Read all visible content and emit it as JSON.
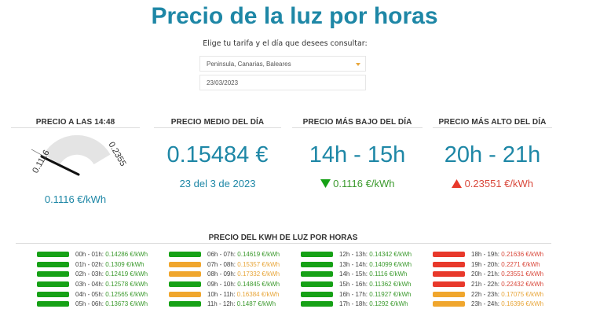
{
  "header": {
    "title": "Precio de la luz por horas",
    "subtitle": "Elige tu tarifa y el día que desees consultar:"
  },
  "form": {
    "tariff_select": {
      "value": "Peninsula, Canarias, Baleares",
      "icon": "chevron-down-icon"
    },
    "date_input": {
      "value": "23/03/2023"
    }
  },
  "colors": {
    "accent": "#1e87a6",
    "green": "#16a116",
    "orange": "#f0a62d",
    "red": "#e8392b",
    "gauge_arc": "#e4e4e4"
  },
  "current_price": {
    "heading": "PRECIO A LAS 14:48",
    "gauge_min_label": "0.1116",
    "gauge_max_label": "0.2355",
    "value": "0.1116 €/kWh"
  },
  "average_price": {
    "heading": "PRECIO MEDIO DEL DÍA",
    "value": "0.15484 €",
    "date": "23 del 3 de 2023"
  },
  "lowest_price": {
    "heading": "PRECIO MÁS BAJO DEL DÍA",
    "range": "14h - 15h",
    "icon": "triangle-down-icon",
    "value": "0.1116 €/kWh"
  },
  "highest_price": {
    "heading": "PRECIO MÁS ALTO DEL DÍA",
    "range": "20h - 21h",
    "icon": "triangle-up-icon",
    "value": "0.23551 €/kWh"
  },
  "hourly": {
    "heading": "PRECIO DEL KWH DE LUZ POR HORAS",
    "columns": [
      [
        {
          "range": "00h - 01h:",
          "price": "0.14286 €/kWh",
          "level": "green"
        },
        {
          "range": "01h - 02h:",
          "price": "0.1309 €/kWh",
          "level": "green"
        },
        {
          "range": "02h - 03h:",
          "price": "0.12419 €/kWh",
          "level": "green"
        },
        {
          "range": "03h - 04h:",
          "price": "0.12578 €/kWh",
          "level": "green"
        },
        {
          "range": "04h - 05h:",
          "price": "0.12565 €/kWh",
          "level": "green"
        },
        {
          "range": "05h - 06h:",
          "price": "0.13673 €/kWh",
          "level": "green"
        }
      ],
      [
        {
          "range": "06h - 07h:",
          "price": "0.14619 €/kWh",
          "level": "green"
        },
        {
          "range": "07h - 08h:",
          "price": "0.15357 €/kWh",
          "level": "orange"
        },
        {
          "range": "08h - 09h:",
          "price": "0.17332 €/kWh",
          "level": "orange"
        },
        {
          "range": "09h - 10h:",
          "price": "0.14845 €/kWh",
          "level": "green"
        },
        {
          "range": "10h - 11h:",
          "price": "0.16384 €/kWh",
          "level": "orange"
        },
        {
          "range": "11h - 12h:",
          "price": "0.1487 €/kWh",
          "level": "green"
        }
      ],
      [
        {
          "range": "12h - 13h:",
          "price": "0.14342 €/kWh",
          "level": "green"
        },
        {
          "range": "13h - 14h:",
          "price": "0.14099 €/kWh",
          "level": "green"
        },
        {
          "range": "14h - 15h:",
          "price": "0.1116 €/kWh",
          "level": "green"
        },
        {
          "range": "15h - 16h:",
          "price": "0.11362 €/kWh",
          "level": "green"
        },
        {
          "range": "16h - 17h:",
          "price": "0.11927 €/kWh",
          "level": "green"
        },
        {
          "range": "17h - 18h:",
          "price": "0.1292 €/kWh",
          "level": "green"
        }
      ],
      [
        {
          "range": "18h - 19h:",
          "price": "0.21636 €/kWh",
          "level": "red"
        },
        {
          "range": "19h - 20h:",
          "price": "0.2271 €/kWh",
          "level": "red"
        },
        {
          "range": "20h - 21h:",
          "price": "0.23551 €/kWh",
          "level": "red"
        },
        {
          "range": "21h - 22h:",
          "price": "0.22432 €/kWh",
          "level": "red"
        },
        {
          "range": "22h - 23h:",
          "price": "0.17075 €/kWh",
          "level": "orange"
        },
        {
          "range": "23h - 24h:",
          "price": "0.16396 €/kWh",
          "level": "orange"
        }
      ]
    ]
  }
}
